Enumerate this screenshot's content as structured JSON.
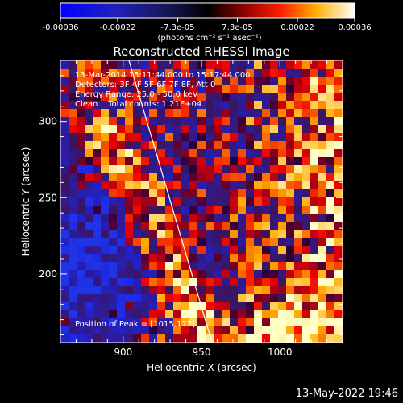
{
  "colorbar": {
    "ticks": [
      {
        "label": "-0.00036",
        "value": -0.00036
      },
      {
        "label": "-0.00022",
        "value": -0.00022
      },
      {
        "label": "-7.3e-05",
        "value": -7.3e-05
      },
      {
        "label": "7.3e-05",
        "value": 7.3e-05
      },
      {
        "label": "0.00022",
        "value": 0.00022
      },
      {
        "label": "0.00036",
        "value": 0.00036
      }
    ],
    "units": "(photons cm⁻² s⁻¹ asec⁻²)",
    "range": [
      -0.00036,
      0.00036
    ]
  },
  "chart_data": {
    "type": "heatmap",
    "title": "Reconstructed RHESSI Image",
    "xlabel": "Heliocentric X (arcsec)",
    "ylabel": "Heliocentric Y (arcsec)",
    "xlim": [
      860,
      1040
    ],
    "ylim": [
      155,
      340
    ],
    "xticks": [
      900,
      950,
      1000
    ],
    "yticks": [
      200,
      250,
      300
    ],
    "colormap": "blue-black-red-yellow-white",
    "annotations": [
      "13-Mar-2014 15:11:44.000 to 15:17:44.000",
      "Detectors: 3F 4F 5F 6F 7F 8F, Att 0",
      "Energy Range: 25.0 - 50.0 keV",
      "Clean    Total counts: 1.21E+04",
      "Position of Peak = [1015,172]"
    ],
    "limb_line": {
      "x": [
        860,
        1040
      ],
      "y": [
        340,
        155
      ]
    },
    "peak": {
      "x": 1015,
      "y": 172
    }
  },
  "footer": "13-May-2022 19:46"
}
